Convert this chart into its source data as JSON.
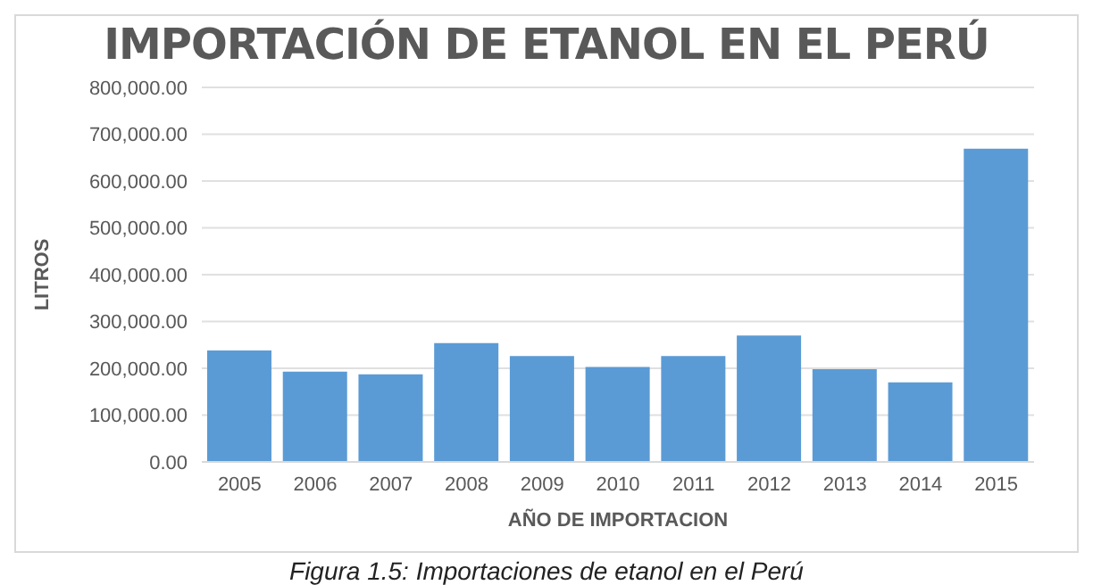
{
  "chart_data": {
    "type": "bar",
    "title": "IMPORTACIÓN DE ETANOL EN EL PERÚ",
    "xlabel": "AÑO DE IMPORTACION",
    "ylabel": "LITROS",
    "categories": [
      "2005",
      "2006",
      "2007",
      "2008",
      "2009",
      "2010",
      "2011",
      "2012",
      "2013",
      "2014",
      "2015"
    ],
    "values": [
      238000,
      193000,
      187000,
      254000,
      226000,
      203000,
      226000,
      270000,
      198000,
      170000,
      669000
    ],
    "color": "#5b9bd5",
    "ylim": [
      0,
      800000
    ],
    "yticks": [
      {
        "value": 0,
        "label": "0.00"
      },
      {
        "value": 100000,
        "label": "100,000.00"
      },
      {
        "value": 200000,
        "label": "200,000.00"
      },
      {
        "value": 300000,
        "label": "300,000.00"
      },
      {
        "value": 400000,
        "label": "400,000.00"
      },
      {
        "value": 500000,
        "label": "500,000.00"
      },
      {
        "value": 600000,
        "label": "600,000.00"
      },
      {
        "value": 700000,
        "label": "700,000.00"
      },
      {
        "value": 800000,
        "label": "800,000.00"
      }
    ],
    "grid": "y",
    "annotations": [
      "Figura 1.5: Importaciones de etanol en el Perú"
    ]
  }
}
